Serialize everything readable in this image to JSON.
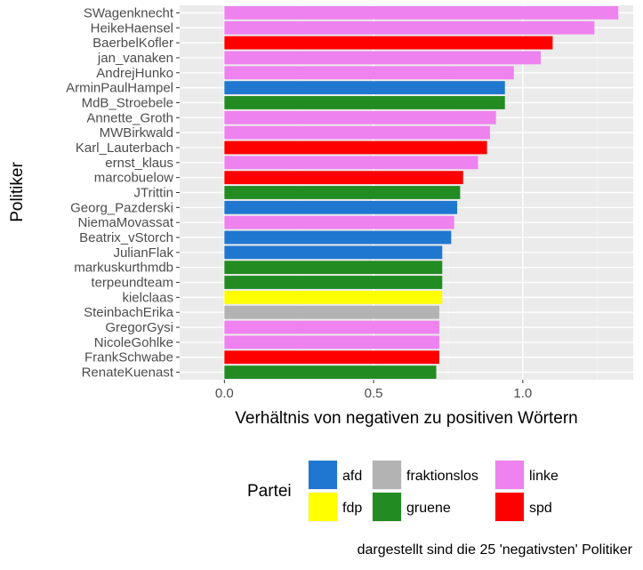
{
  "chart_data": {
    "type": "bar",
    "orientation": "horizontal",
    "xlabel": "Verhältnis von negativen zu positiven Wörtern",
    "ylabel": "Politiker",
    "xlim": [
      -0.15,
      1.37
    ],
    "xticks": [
      0.0,
      0.5,
      1.0
    ],
    "xtick_labels": [
      "0.0",
      "0.5",
      "1.0"
    ],
    "grid": true,
    "caption": "dargestellt sind die 25 'negativsten' Politiker",
    "legend": {
      "title": "Partei",
      "position": "bottom",
      "entries": [
        {
          "label": "afd",
          "color": "#1f77d0"
        },
        {
          "label": "fraktionslos",
          "color": "#b3b3b3"
        },
        {
          "label": "linke",
          "color": "#ee82ee"
        },
        {
          "label": "fdp",
          "color": "#ffff00"
        },
        {
          "label": "gruene",
          "color": "#228b22"
        },
        {
          "label": "spd",
          "color": "#ff0000"
        }
      ]
    },
    "categories": [
      "SWagenknecht",
      "HeikeHaensel",
      "BaerbelKofler",
      "jan_vanaken",
      "AndrejHunko",
      "ArminPaulHampel",
      "MdB_Stroebele",
      "Annette_Groth",
      "MWBirkwald",
      "Karl_Lauterbach",
      "ernst_klaus",
      "marcobuelow",
      "JTrittin",
      "Georg_Pazderski",
      "NiemaMovassat",
      "Beatrix_vStorch",
      "JulianFlak",
      "markuskurthmdb",
      "terpeundteam",
      "kielclaas",
      "SteinbachErika",
      "GregorGysi",
      "NicoleGohlke",
      "FrankSchwabe",
      "RenateKuenast"
    ],
    "values": [
      1.32,
      1.24,
      1.1,
      1.06,
      0.97,
      0.94,
      0.94,
      0.91,
      0.89,
      0.88,
      0.85,
      0.8,
      0.79,
      0.78,
      0.77,
      0.76,
      0.73,
      0.73,
      0.73,
      0.73,
      0.72,
      0.72,
      0.72,
      0.72,
      0.71
    ],
    "party": [
      "linke",
      "linke",
      "spd",
      "linke",
      "linke",
      "afd",
      "gruene",
      "linke",
      "linke",
      "spd",
      "linke",
      "spd",
      "gruene",
      "afd",
      "linke",
      "afd",
      "afd",
      "gruene",
      "gruene",
      "fdp",
      "fraktionslos",
      "linke",
      "linke",
      "spd",
      "gruene"
    ]
  }
}
